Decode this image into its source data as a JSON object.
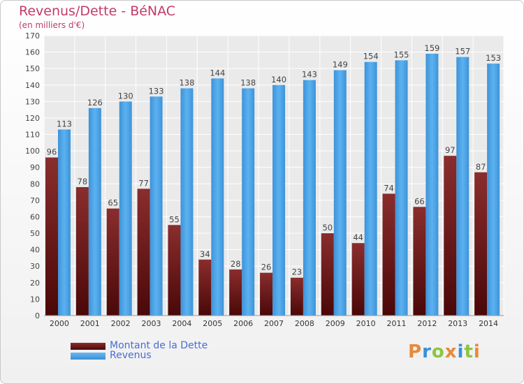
{
  "chart_data": {
    "type": "bar",
    "title": "Revenus/Dette - BéNAC",
    "subtitle": "(en milliers d'€)",
    "categories": [
      "2000",
      "2001",
      "2002",
      "2003",
      "2004",
      "2005",
      "2006",
      "2007",
      "2008",
      "2009",
      "2010",
      "2011",
      "2012",
      "2013",
      "2014"
    ],
    "series": [
      {
        "name": "Montant de la Dette",
        "color": "#7a1d1d",
        "values": [
          96,
          78,
          65,
          77,
          55,
          34,
          28,
          26,
          23,
          50,
          44,
          74,
          66,
          97,
          87
        ]
      },
      {
        "name": "Revenus",
        "color": "#4aa3e6",
        "values": [
          113,
          126,
          130,
          133,
          138,
          144,
          138,
          140,
          143,
          149,
          154,
          155,
          159,
          157,
          153
        ]
      }
    ],
    "ylim": [
      0,
      170
    ],
    "yticks": [
      0,
      10,
      20,
      30,
      40,
      50,
      60,
      70,
      80,
      90,
      100,
      110,
      120,
      130,
      140,
      150,
      160,
      170
    ],
    "grid": true,
    "legend_position": "bottom-left"
  },
  "logo": {
    "text": "Proxiti",
    "letter_colors": [
      "#e8893a",
      "#3a8fd6",
      "#8cc63e",
      "#e8893a",
      "#3a8fd6",
      "#8cc63e",
      "#e8893a"
    ]
  }
}
